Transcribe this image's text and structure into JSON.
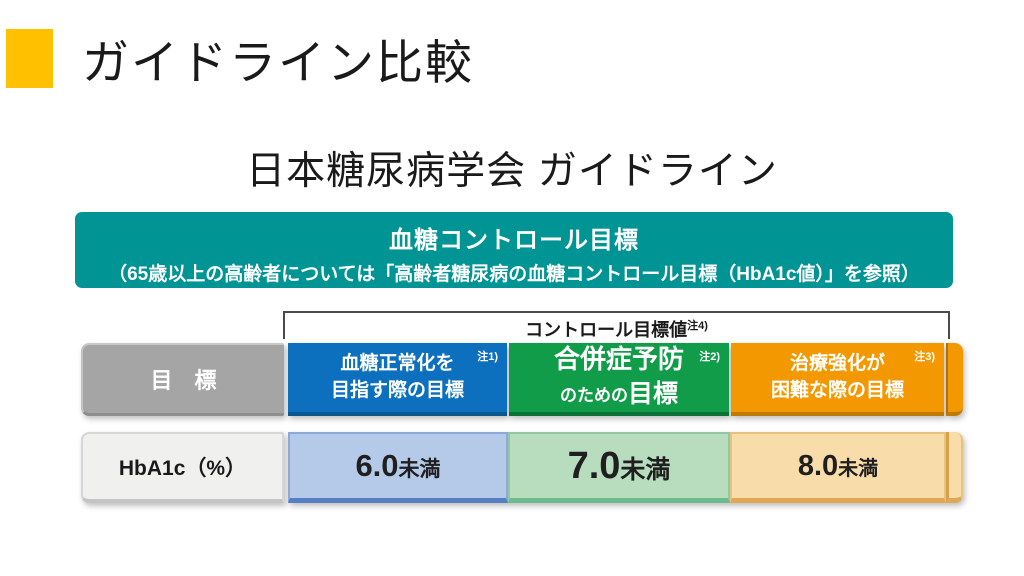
{
  "slide": {
    "title": "ガイドライン比較",
    "heading": "日本糖尿病学会 ガイドライン"
  },
  "banner": {
    "line1": "血糖コントロール目標",
    "line2": "（65歳以上の高齢者については「高齢者糖尿病の血糖コントロール目標（HbA1c値）」を参照）"
  },
  "bracket": {
    "label": "コントロール目標値",
    "note": "注4)"
  },
  "table": {
    "header_label": "目　標",
    "value_label": "HbA1c（%）",
    "columns": [
      {
        "line1": "血糖正常化を",
        "line2": "目指す際の目標",
        "line2_emph": "",
        "note": "注1)",
        "value": "6.0",
        "value_suffix": "未満"
      },
      {
        "line1": "合併症予防",
        "line2": "のための",
        "line2_emph": "目標",
        "note": "注2)",
        "value": "7.0",
        "value_suffix": "未満"
      },
      {
        "line1": "治療強化が",
        "line2": "困難な際の目標",
        "line2_emph": "",
        "note": "注3)",
        "value": "8.0",
        "value_suffix": "未満"
      }
    ]
  },
  "colors": {
    "accent_yellow": "#FFC000",
    "banner_teal": "#009494",
    "header_gray": "#A5A5A5",
    "header_blue": "#0D70BF",
    "header_green": "#119C49",
    "header_orange": "#F39800",
    "value_gray": "#F0F0EF",
    "value_blue": "#B5C9E9",
    "value_green": "#B7DCBE",
    "value_orange": "#F8DCA9"
  }
}
